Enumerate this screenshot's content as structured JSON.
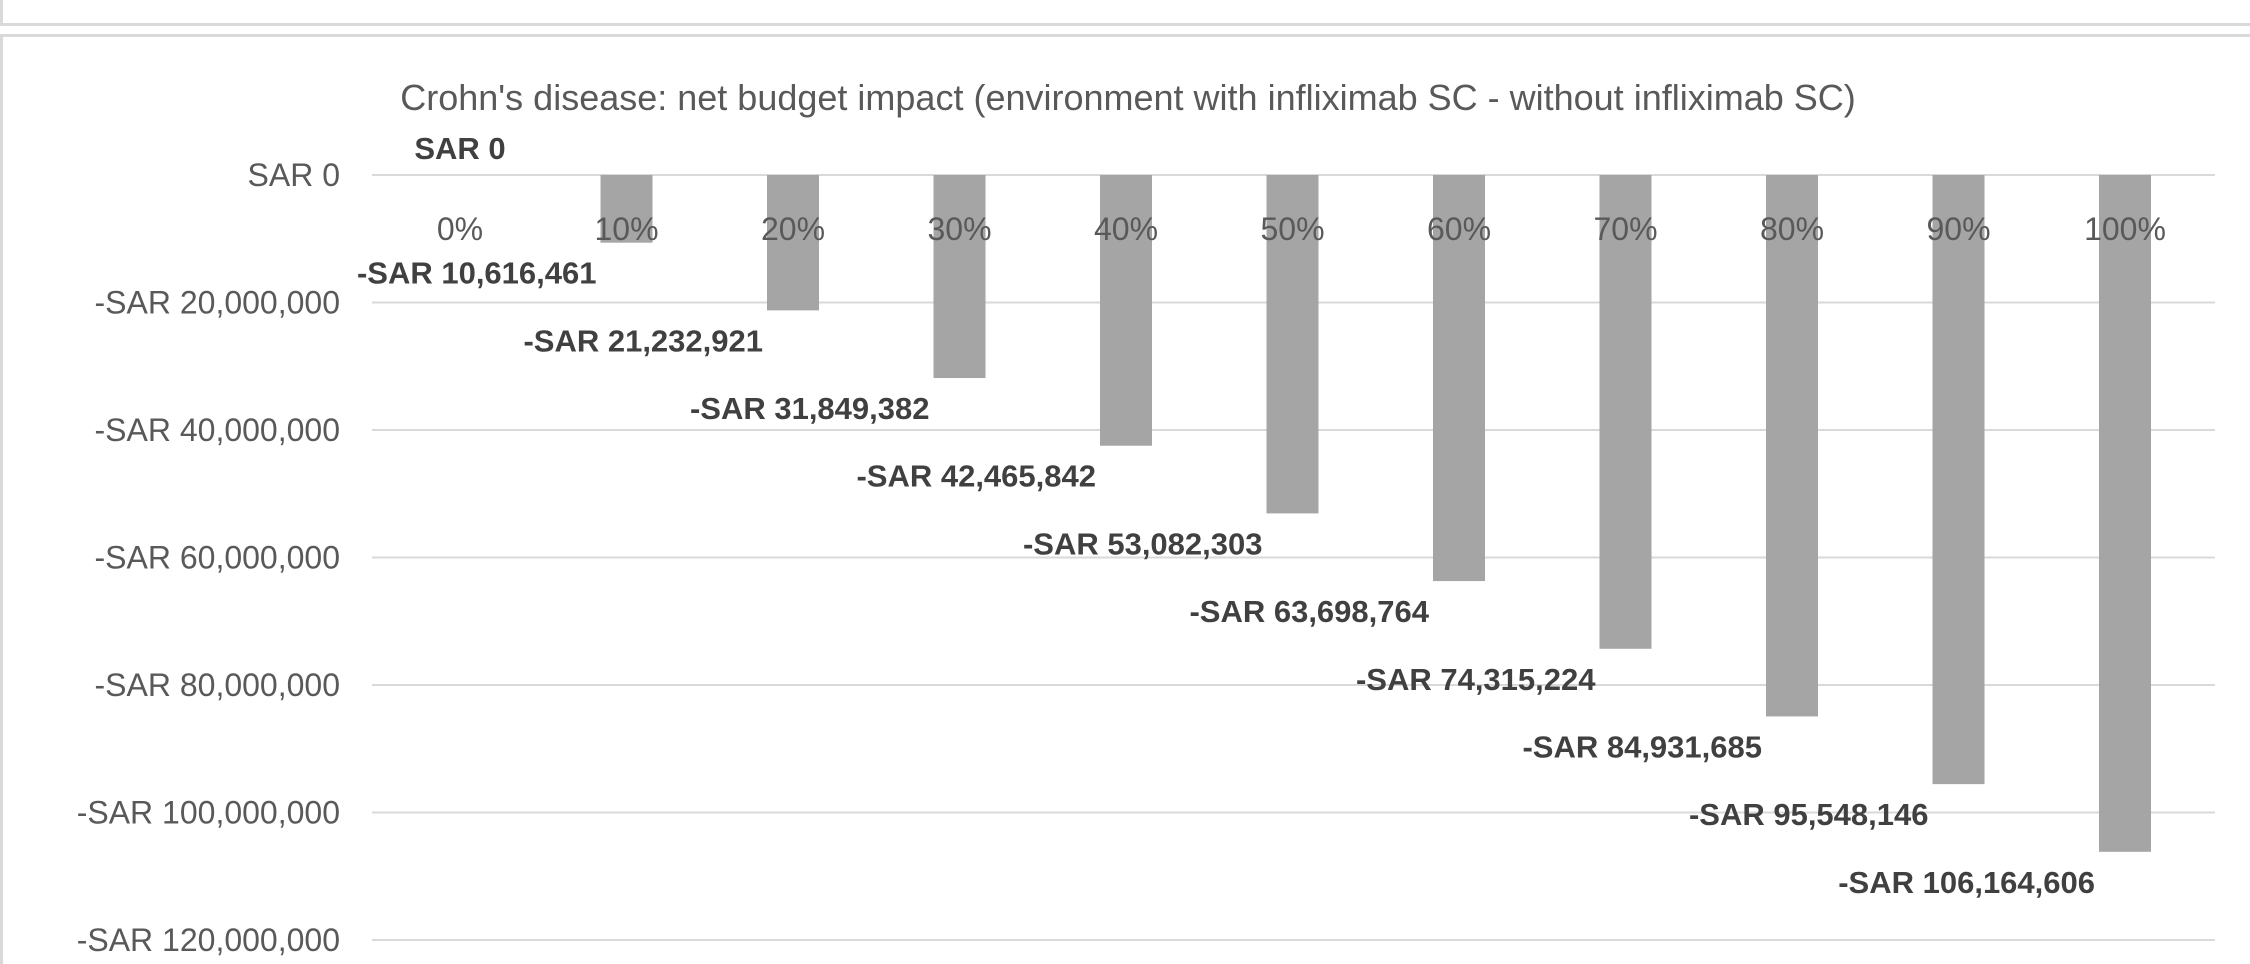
{
  "chart_data": {
    "type": "bar",
    "title": "Crohn's disease: net budget impact (environment with infliximab SC - without infliximab SC)",
    "xlabel": "",
    "ylabel": "",
    "categories": [
      "0%",
      "10%",
      "20%",
      "30%",
      "40%",
      "50%",
      "60%",
      "70%",
      "80%",
      "90%",
      "100%"
    ],
    "values": [
      0,
      -10616461,
      -21232921,
      -31849382,
      -42465842,
      -53082303,
      -63698764,
      -74315224,
      -84931685,
      -95548146,
      -106164606
    ],
    "data_labels": [
      "SAR 0",
      "-SAR 10,616,461",
      "-SAR 21,232,921",
      "-SAR 31,849,382",
      "-SAR 42,465,842",
      "-SAR 53,082,303",
      "-SAR 63,698,764",
      "-SAR 74,315,224",
      "-SAR 84,931,685",
      "-SAR 95,548,146",
      "-SAR 106,164,606"
    ],
    "ylim": [
      -120000000,
      0
    ],
    "yticks": [
      0,
      -20000000,
      -40000000,
      -60000000,
      -80000000,
      -100000000,
      -120000000
    ],
    "ytick_labels": [
      "SAR 0",
      "-SAR 20,000,000",
      "-SAR 40,000,000",
      "-SAR 60,000,000",
      "-SAR 80,000,000",
      "-SAR 100,000,000",
      "-SAR 120,000,000"
    ],
    "grid": true,
    "legend": "none",
    "colors": {
      "bar": "#a5a5a5",
      "grid": "#d9d9d9",
      "tick_text": "#595959",
      "label_text": "#404040"
    }
  }
}
